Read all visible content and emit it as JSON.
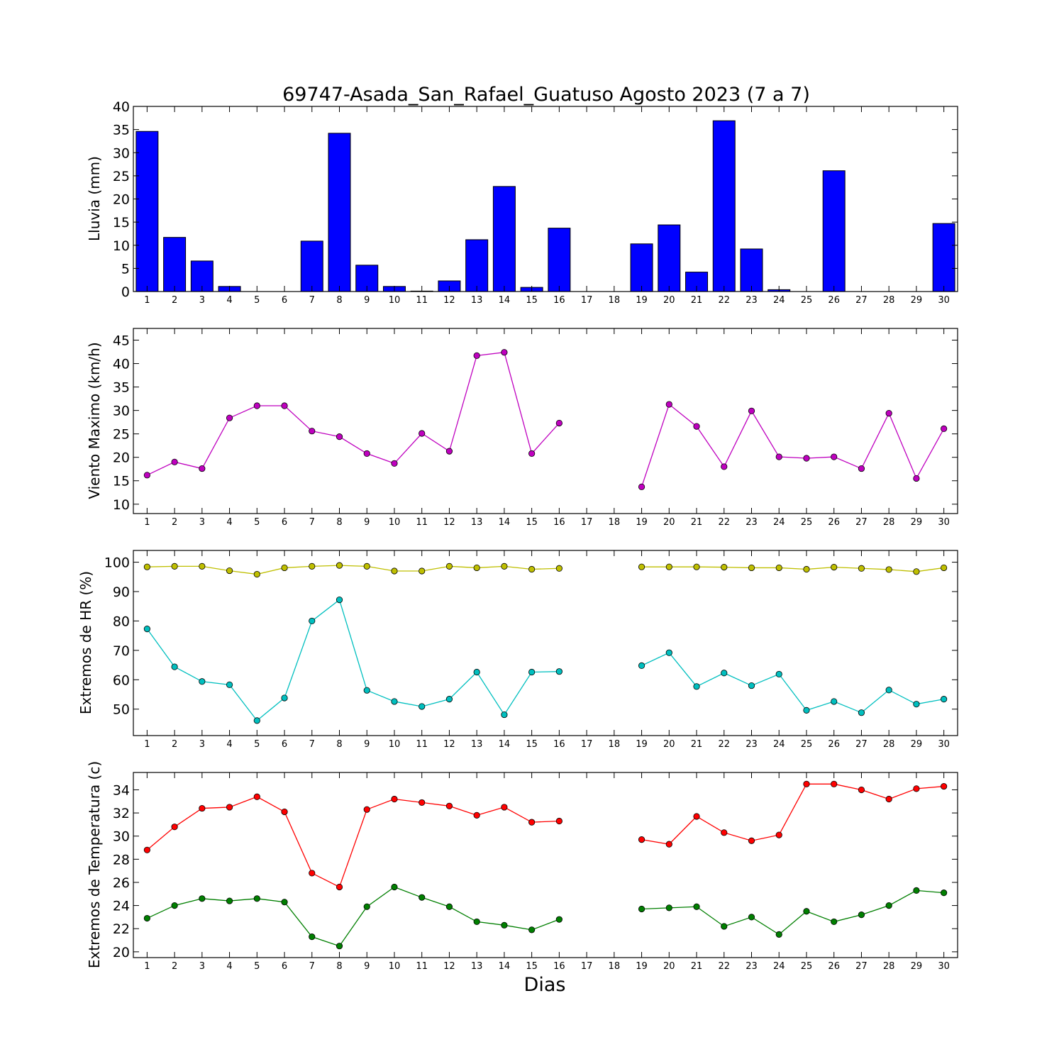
{
  "figure": {
    "title": "69747-Asada_San_Rafael_Guatuso Agosto 2023  (7 a 7)",
    "xlabel": "Dias",
    "colors": {
      "lluvia": "#0000ff",
      "viento": "#bf00bf",
      "hr_max": "#bfbf00",
      "hr_min": "#00bfbf",
      "temp_max": "#ff0000",
      "temp_min": "#007f00"
    }
  },
  "chart_data": [
    {
      "type": "bar",
      "ylabel": "Lluvia (mm)",
      "ylim": [
        0,
        40
      ],
      "yticks": [
        0,
        5,
        10,
        15,
        20,
        25,
        30,
        35,
        40
      ],
      "xticks": [
        1,
        2,
        3,
        4,
        5,
        6,
        7,
        8,
        9,
        10,
        11,
        12,
        13,
        14,
        15,
        16,
        17,
        18,
        19,
        20,
        21,
        22,
        23,
        24,
        25,
        26,
        27,
        28,
        29,
        30
      ],
      "categories": [
        1,
        2,
        3,
        4,
        5,
        6,
        7,
        8,
        9,
        10,
        11,
        12,
        13,
        14,
        15,
        16,
        17,
        18,
        19,
        20,
        21,
        22,
        23,
        24,
        25,
        26,
        27,
        28,
        29,
        30
      ],
      "values": [
        34.6,
        11.7,
        6.6,
        1.1,
        0,
        0,
        10.9,
        34.2,
        5.7,
        1.1,
        0.1,
        2.3,
        11.2,
        22.7,
        0.9,
        13.7,
        0,
        0,
        10.3,
        14.4,
        4.2,
        36.9,
        9.2,
        0.4,
        0,
        26.1,
        0,
        0,
        0,
        14.7
      ]
    },
    {
      "type": "line",
      "ylabel": "Viento Maximo (km/h)",
      "ylim": [
        8,
        47.5
      ],
      "yticks": [
        10,
        15,
        20,
        25,
        30,
        35,
        40,
        45
      ],
      "xticks": [
        1,
        2,
        3,
        4,
        5,
        6,
        7,
        8,
        9,
        10,
        11,
        12,
        13,
        14,
        15,
        16,
        17,
        18,
        19,
        20,
        21,
        22,
        23,
        24,
        25,
        26,
        27,
        28,
        29,
        30
      ],
      "x": [
        1,
        2,
        3,
        4,
        5,
        6,
        7,
        8,
        9,
        10,
        11,
        12,
        13,
        14,
        15,
        16,
        17,
        18,
        19,
        20,
        21,
        22,
        23,
        24,
        25,
        26,
        27,
        28,
        29,
        30
      ],
      "series": [
        {
          "values": [
            16.2,
            19.0,
            17.6,
            28.4,
            31.0,
            31.0,
            25.6,
            24.4,
            20.8,
            18.7,
            25.1,
            21.3,
            41.7,
            42.4,
            20.8,
            27.3,
            null,
            null,
            13.7,
            31.3,
            26.6,
            18.0,
            29.9,
            20.1,
            19.8,
            20.1,
            17.6,
            29.4,
            15.5,
            26.1
          ]
        }
      ]
    },
    {
      "type": "line",
      "ylabel": "Extremos de HR (%)",
      "ylim": [
        41,
        104
      ],
      "yticks": [
        50,
        60,
        70,
        80,
        90,
        100
      ],
      "xticks": [
        1,
        2,
        3,
        4,
        5,
        6,
        7,
        8,
        9,
        10,
        11,
        12,
        13,
        14,
        15,
        16,
        17,
        18,
        19,
        20,
        21,
        22,
        23,
        24,
        25,
        26,
        27,
        28,
        29,
        30
      ],
      "x": [
        1,
        2,
        3,
        4,
        5,
        6,
        7,
        8,
        9,
        10,
        11,
        12,
        13,
        14,
        15,
        16,
        17,
        18,
        19,
        20,
        21,
        22,
        23,
        24,
        25,
        26,
        27,
        28,
        29,
        30
      ],
      "series": [
        {
          "values": [
            98.4,
            98.6,
            98.6,
            97.1,
            95.9,
            98.1,
            98.6,
            98.9,
            98.6,
            97.0,
            97.0,
            98.6,
            98.1,
            98.6,
            97.6,
            97.9,
            null,
            null,
            98.4,
            98.4,
            98.4,
            98.3,
            98.1,
            98.1,
            97.6,
            98.3,
            97.9,
            97.5,
            96.8,
            98.1
          ]
        },
        {
          "values": [
            77.3,
            64.4,
            59.4,
            58.3,
            46.1,
            53.8,
            80.0,
            87.2,
            56.4,
            52.6,
            50.9,
            53.4,
            62.6,
            48.1,
            62.6,
            62.8,
            null,
            null,
            64.8,
            69.2,
            57.7,
            62.3,
            58.0,
            61.9,
            49.6,
            52.6,
            48.8,
            56.5,
            51.7,
            53.4
          ]
        }
      ]
    },
    {
      "type": "line",
      "ylabel": "Extremos de Temperatura (c)",
      "ylim": [
        19.5,
        35.5
      ],
      "yticks": [
        20,
        22,
        24,
        26,
        28,
        30,
        32,
        34
      ],
      "xticks": [
        1,
        2,
        3,
        4,
        5,
        6,
        7,
        8,
        9,
        10,
        11,
        12,
        13,
        14,
        15,
        16,
        17,
        18,
        19,
        20,
        21,
        22,
        23,
        24,
        25,
        26,
        27,
        28,
        29,
        30
      ],
      "x": [
        1,
        2,
        3,
        4,
        5,
        6,
        7,
        8,
        9,
        10,
        11,
        12,
        13,
        14,
        15,
        16,
        17,
        18,
        19,
        20,
        21,
        22,
        23,
        24,
        25,
        26,
        27,
        28,
        29,
        30
      ],
      "series": [
        {
          "values": [
            28.8,
            30.8,
            32.4,
            32.5,
            33.4,
            32.1,
            26.8,
            25.6,
            32.3,
            33.2,
            32.9,
            32.6,
            31.8,
            32.5,
            31.2,
            31.3,
            null,
            null,
            29.7,
            29.3,
            31.7,
            30.3,
            29.6,
            30.1,
            34.5,
            34.5,
            34.0,
            33.2,
            34.1,
            34.3
          ]
        },
        {
          "values": [
            22.9,
            24.0,
            24.6,
            24.4,
            24.6,
            24.3,
            21.3,
            20.5,
            23.9,
            25.6,
            24.7,
            23.9,
            22.6,
            22.3,
            21.9,
            22.8,
            null,
            null,
            23.7,
            23.8,
            23.9,
            22.2,
            23.0,
            21.5,
            23.5,
            22.6,
            23.2,
            24.0,
            25.3,
            25.1
          ]
        }
      ]
    }
  ]
}
